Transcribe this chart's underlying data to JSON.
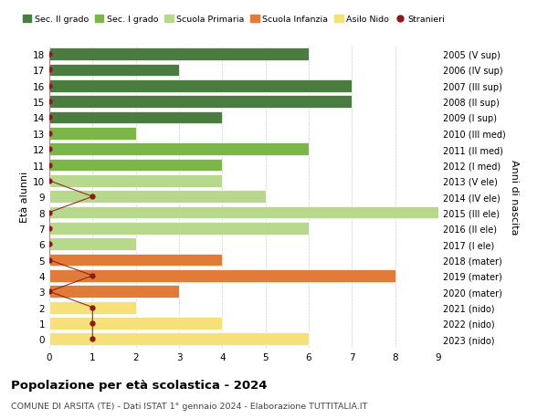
{
  "ages": [
    18,
    17,
    16,
    15,
    14,
    13,
    12,
    11,
    10,
    9,
    8,
    7,
    6,
    5,
    4,
    3,
    2,
    1,
    0
  ],
  "right_labels": [
    "2005 (V sup)",
    "2006 (IV sup)",
    "2007 (III sup)",
    "2008 (II sup)",
    "2009 (I sup)",
    "2010 (III med)",
    "2011 (II med)",
    "2012 (I med)",
    "2013 (V ele)",
    "2014 (IV ele)",
    "2015 (III ele)",
    "2016 (II ele)",
    "2017 (I ele)",
    "2018 (mater)",
    "2019 (mater)",
    "2020 (mater)",
    "2021 (nido)",
    "2022 (nido)",
    "2023 (nido)"
  ],
  "bar_values": [
    6,
    3,
    7,
    7,
    4,
    2,
    6,
    4,
    4,
    5,
    9,
    6,
    2,
    4,
    8,
    3,
    2,
    4,
    6
  ],
  "bar_colors": [
    "#4a7c3f",
    "#4a7c3f",
    "#4a7c3f",
    "#4a7c3f",
    "#4a7c3f",
    "#7ab648",
    "#7ab648",
    "#7ab648",
    "#b8d98d",
    "#b8d98d",
    "#b8d98d",
    "#b8d98d",
    "#b8d98d",
    "#e07b39",
    "#e07b39",
    "#e07b39",
    "#f5e07a",
    "#f5e07a",
    "#f5e07a"
  ],
  "stranieri_values": [
    0,
    0,
    0,
    0,
    0,
    0,
    0,
    0,
    0,
    1,
    0,
    0,
    0,
    0,
    1,
    0,
    1,
    1,
    1
  ],
  "stranieri_color": "#8b1a1a",
  "title_bold": "Popolazione per età scolastica - 2024",
  "subtitle": "COMUNE DI ARSITA (TE) - Dati ISTAT 1° gennaio 2024 - Elaborazione TUTTITALIA.IT",
  "ylabel": "Età alunni",
  "right_ylabel": "Anni di nascita",
  "xlim": [
    0,
    9
  ],
  "legend_entries": [
    {
      "label": "Sec. II grado",
      "color": "#4a7c3f",
      "type": "patch"
    },
    {
      "label": "Sec. I grado",
      "color": "#7ab648",
      "type": "patch"
    },
    {
      "label": "Scuola Primaria",
      "color": "#b8d98d",
      "type": "patch"
    },
    {
      "label": "Scuola Infanzia",
      "color": "#e07b39",
      "type": "patch"
    },
    {
      "label": "Asilo Nido",
      "color": "#f5e07a",
      "type": "patch"
    },
    {
      "label": "Stranieri",
      "color": "#8b1a1a",
      "type": "dot"
    }
  ],
  "bg_color": "#ffffff",
  "grid_color": "#cccccc"
}
